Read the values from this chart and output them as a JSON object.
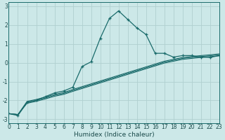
{
  "xlabel": "Humidex (Indice chaleur)",
  "bg_color": "#cce8e8",
  "grid_color": "#b0d0d0",
  "line_color": "#1a6b6b",
  "x_values": [
    0,
    1,
    2,
    3,
    4,
    5,
    6,
    7,
    8,
    9,
    10,
    11,
    12,
    13,
    14,
    15,
    16,
    17,
    18,
    19,
    20,
    21,
    22,
    23
  ],
  "curve1": [
    -2.7,
    -2.8,
    -2.1,
    -2.0,
    -1.8,
    -1.6,
    -1.5,
    -1.3,
    -0.2,
    0.05,
    1.3,
    2.35,
    2.75,
    2.3,
    1.85,
    1.5,
    0.5,
    0.5,
    0.3,
    0.38,
    0.38,
    0.3,
    0.28,
    0.38
  ],
  "curve2": [
    -2.7,
    -2.75,
    -2.05,
    -1.95,
    -1.82,
    -1.68,
    -1.58,
    -1.42,
    -1.27,
    -1.12,
    -0.97,
    -0.82,
    -0.67,
    -0.52,
    -0.37,
    -0.22,
    -0.07,
    0.08,
    0.18,
    0.28,
    0.33,
    0.38,
    0.42,
    0.47
  ],
  "curve3": [
    -2.7,
    -2.75,
    -2.1,
    -2.0,
    -1.87,
    -1.73,
    -1.63,
    -1.47,
    -1.32,
    -1.17,
    -1.02,
    -0.87,
    -0.72,
    -0.57,
    -0.42,
    -0.27,
    -0.12,
    0.03,
    0.13,
    0.23,
    0.28,
    0.33,
    0.37,
    0.42
  ],
  "curve4": [
    -2.7,
    -2.75,
    -2.15,
    -2.05,
    -1.92,
    -1.78,
    -1.68,
    -1.52,
    -1.37,
    -1.22,
    -1.07,
    -0.92,
    -0.77,
    -0.62,
    -0.47,
    -0.32,
    -0.17,
    -0.02,
    0.08,
    0.18,
    0.23,
    0.28,
    0.32,
    0.37
  ],
  "ylim": [
    -3.2,
    3.2
  ],
  "xlim": [
    0,
    23
  ],
  "yticks": [
    -3,
    -2,
    -1,
    0,
    1,
    2,
    3
  ],
  "xticks": [
    0,
    1,
    2,
    3,
    4,
    5,
    6,
    7,
    8,
    9,
    10,
    11,
    12,
    13,
    14,
    15,
    16,
    17,
    18,
    19,
    20,
    21,
    22,
    23
  ],
  "tick_fontsize": 5.5,
  "xlabel_fontsize": 6.5
}
